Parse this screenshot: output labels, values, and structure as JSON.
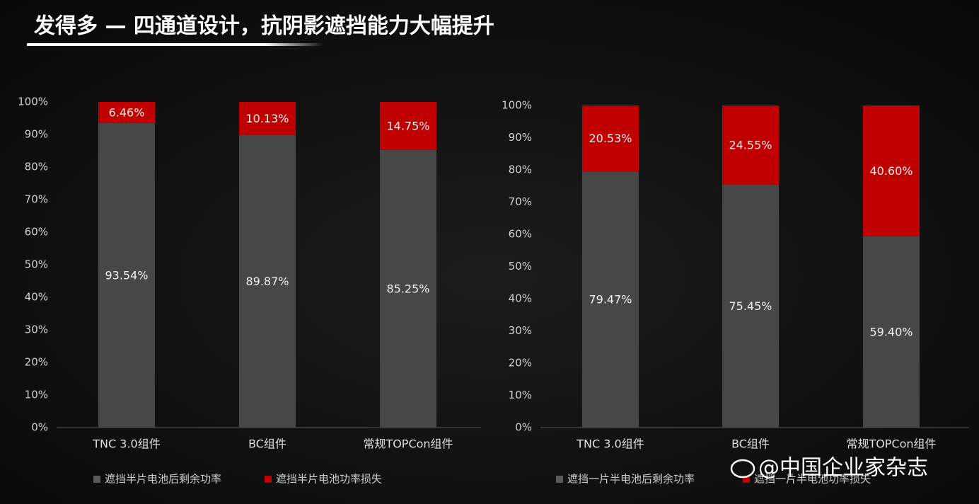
{
  "title": "发得多 — 四通道设计，抗阴影遮挡能力大幅提升",
  "watermark": "@中国企业家杂志",
  "chart_data": [
    {
      "type": "stacked_bar",
      "categories": [
        "TNC 3.0组件",
        "BC组件",
        "常规TOPCon组件"
      ],
      "series": [
        {
          "name": "遮挡半片电池后剩余功率",
          "color": "#474747",
          "values": [
            93.54,
            89.87,
            85.25
          ],
          "value_labels": [
            "93.54%",
            "89.87%",
            "85.25%"
          ]
        },
        {
          "name": "遮挡半片电池功率损失",
          "color": "#c00000",
          "values": [
            6.46,
            10.13,
            14.75
          ],
          "value_labels": [
            "6.46%",
            "10.13%",
            "14.75%"
          ]
        }
      ],
      "ylim": [
        0,
        100
      ],
      "yticks": [
        {
          "value": 0,
          "label": "0%"
        },
        {
          "value": 10,
          "label": "10%"
        },
        {
          "value": 20,
          "label": "20%"
        },
        {
          "value": 30,
          "label": "30%"
        },
        {
          "value": 40,
          "label": "40%"
        },
        {
          "value": 50,
          "label": "50%"
        },
        {
          "value": 60,
          "label": "60%"
        },
        {
          "value": 70,
          "label": "70%"
        },
        {
          "value": 80,
          "label": "80%"
        },
        {
          "value": 90,
          "label": "90%"
        },
        {
          "value": 100,
          "label": "100%"
        }
      ],
      "grid": false,
      "legend": "bottom"
    },
    {
      "type": "stacked_bar",
      "categories": [
        "TNC 3.0组件",
        "BC组件",
        "常规TOPCon组件"
      ],
      "series": [
        {
          "name": "遮挡一片半电池后剩余功率",
          "color": "#474747",
          "values": [
            79.47,
            75.45,
            59.4
          ],
          "value_labels": [
            "79.47%",
            "75.45%",
            "59.40%"
          ]
        },
        {
          "name": "遮挡一片半电池功率损失",
          "color": "#c00000",
          "values": [
            20.53,
            24.55,
            40.6
          ],
          "value_labels": [
            "20.53%",
            "24.55%",
            "40.60%"
          ]
        }
      ],
      "ylim": [
        0,
        100
      ],
      "yticks": [
        {
          "value": 0,
          "label": "0%"
        },
        {
          "value": 10,
          "label": "10%"
        },
        {
          "value": 20,
          "label": "20%"
        },
        {
          "value": 30,
          "label": "30%"
        },
        {
          "value": 40,
          "label": "40%"
        },
        {
          "value": 50,
          "label": "50%"
        },
        {
          "value": 60,
          "label": "60%"
        },
        {
          "value": 70,
          "label": "70%"
        },
        {
          "value": 80,
          "label": "80%"
        },
        {
          "value": 90,
          "label": "90%"
        },
        {
          "value": 100,
          "label": "100%"
        }
      ],
      "grid": false,
      "legend": "bottom"
    }
  ]
}
